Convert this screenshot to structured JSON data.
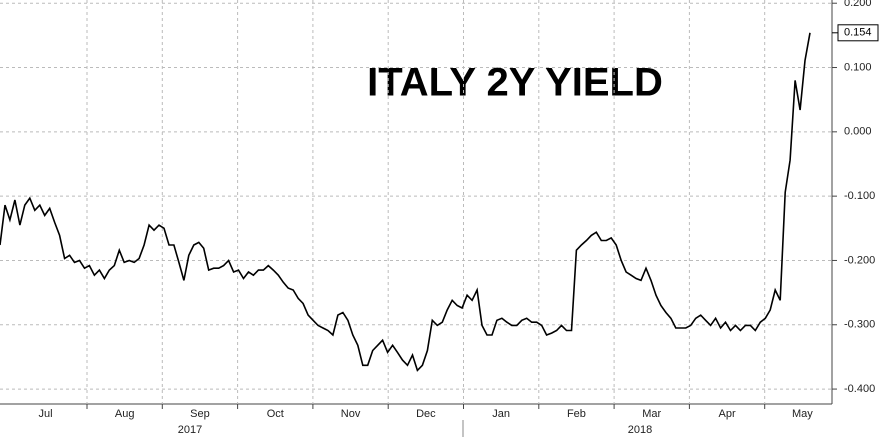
{
  "chart_data": {
    "type": "line",
    "title": "ITALY 2Y YIELD",
    "months": [
      "Jul",
      "Aug",
      "Sep",
      "Oct",
      "Nov",
      "Dec",
      "Jan",
      "Feb",
      "Mar",
      "Apr",
      "May"
    ],
    "years": [
      "2017",
      "2018"
    ],
    "color": "#000000",
    "grid": true,
    "ylim": [
      -0.417,
      0.205
    ],
    "yticks": [
      {
        "value": 0.2,
        "label": "0.200"
      },
      {
        "value": 0.1,
        "label": "0.100"
      },
      {
        "value": 0,
        "label": "0.000"
      },
      {
        "value": -0.1,
        "label": "-0.100"
      },
      {
        "value": -0.2,
        "label": "-0.200"
      },
      {
        "value": -0.3,
        "label": "-0.300"
      },
      {
        "value": -0.4,
        "label": "-0.400"
      }
    ],
    "values": [
      -0.176,
      -0.114,
      -0.137,
      -0.106,
      -0.145,
      -0.114,
      -0.103,
      -0.122,
      -0.114,
      -0.13,
      -0.119,
      -0.141,
      -0.161,
      -0.197,
      -0.192,
      -0.203,
      -0.2,
      -0.212,
      -0.208,
      -0.223,
      -0.215,
      -0.228,
      -0.215,
      -0.208,
      -0.184,
      -0.203,
      -0.2,
      -0.203,
      -0.197,
      -0.176,
      -0.145,
      -0.153,
      -0.145,
      -0.15,
      -0.176,
      -0.176,
      -0.203,
      -0.231,
      -0.192,
      -0.176,
      -0.172,
      -0.181,
      -0.215,
      -0.212,
      -0.212,
      -0.208,
      -0.2,
      -0.218,
      -0.215,
      -0.228,
      -0.218,
      -0.223,
      -0.215,
      -0.215,
      -0.208,
      -0.215,
      -0.223,
      -0.234,
      -0.243,
      -0.246,
      -0.259,
      -0.267,
      -0.285,
      -0.293,
      -0.301,
      -0.305,
      -0.309,
      -0.316,
      -0.285,
      -0.281,
      -0.293,
      -0.316,
      -0.332,
      -0.363,
      -0.363,
      -0.34,
      -0.332,
      -0.324,
      -0.343,
      -0.332,
      -0.343,
      -0.355,
      -0.363,
      -0.347,
      -0.371,
      -0.363,
      -0.34,
      -0.293,
      -0.301,
      -0.296,
      -0.277,
      -0.262,
      -0.27,
      -0.274,
      -0.254,
      -0.262,
      -0.246,
      -0.301,
      -0.316,
      -0.316,
      -0.293,
      -0.29,
      -0.296,
      -0.301,
      -0.301,
      -0.293,
      -0.29,
      -0.296,
      -0.296,
      -0.301,
      -0.316,
      -0.313,
      -0.309,
      -0.301,
      -0.309,
      -0.309,
      -0.184,
      -0.176,
      -0.169,
      -0.161,
      -0.156,
      -0.169,
      -0.169,
      -0.165,
      -0.176,
      -0.2,
      -0.218,
      -0.223,
      -0.228,
      -0.231,
      -0.212,
      -0.231,
      -0.254,
      -0.27,
      -0.281,
      -0.29,
      -0.305,
      -0.305,
      -0.305,
      -0.301,
      -0.29,
      -0.285,
      -0.293,
      -0.301,
      -0.29,
      -0.305,
      -0.296,
      -0.309,
      -0.301,
      -0.309,
      -0.301,
      -0.301,
      -0.309,
      -0.296,
      -0.29,
      -0.277,
      -0.246,
      -0.262,
      -0.094,
      -0.044,
      0.08,
      0.034,
      0.111,
      0.154
    ]
  }
}
